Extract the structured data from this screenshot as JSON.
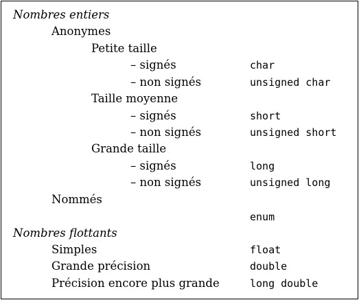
{
  "rows": [
    {
      "label": "Nombres entiers",
      "type": ""
    },
    {
      "label": "Anonymes",
      "type": ""
    },
    {
      "label": "Petite taille",
      "type": ""
    },
    {
      "label": "– signés",
      "type": "char"
    },
    {
      "label": "– non signés",
      "type": "unsigned char"
    },
    {
      "label": "Taille moyenne",
      "type": ""
    },
    {
      "label": "– signés",
      "type": "short"
    },
    {
      "label": "– non signés",
      "type": "unsigned short"
    },
    {
      "label": "Grande taille",
      "type": ""
    },
    {
      "label": "– signés",
      "type": "long"
    },
    {
      "label": "– non signés",
      "type": "unsigned long"
    },
    {
      "label": "Nommés",
      "type": ""
    },
    {
      "label": "",
      "type": "enum"
    },
    {
      "label": "Nombres flottants",
      "type": ""
    },
    {
      "label": "Simples",
      "type": "float"
    },
    {
      "label": "Grande précision",
      "type": "double"
    },
    {
      "label": "Précision encore plus grande",
      "type": "long double"
    }
  ]
}
